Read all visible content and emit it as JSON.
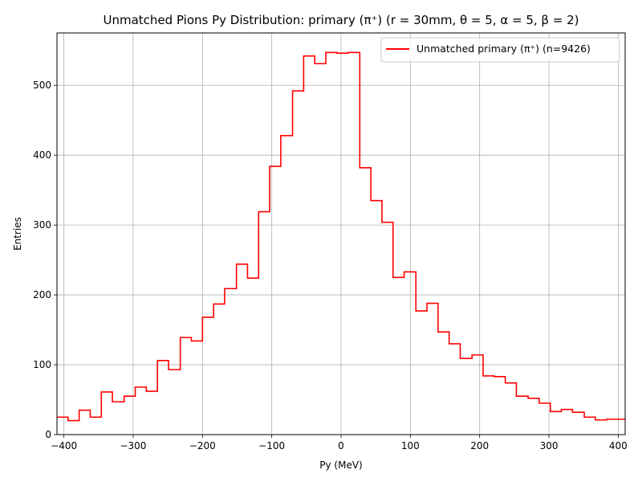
{
  "chart_data": {
    "type": "histogram-step",
    "title": "Unmatched Pions Py Distribution: primary (π⁺) (r = 30mm, θ = 5, α = 5, β = 2)",
    "xlabel": "Py (MeV)",
    "ylabel": "Entries",
    "xlim": [
      -410,
      410
    ],
    "ylim": [
      0,
      575
    ],
    "xticks": [
      -400,
      -300,
      -200,
      -100,
      0,
      100,
      200,
      300,
      400
    ],
    "xtick_labels": [
      "−400",
      "−300",
      "−200",
      "−100",
      "0",
      "100",
      "200",
      "300",
      "400"
    ],
    "yticks": [
      0,
      100,
      200,
      300,
      400,
      500
    ],
    "ytick_labels": [
      "0",
      "100",
      "200",
      "300",
      "400",
      "500"
    ],
    "grid": true,
    "legend_position": "top-right",
    "series": [
      {
        "name": "Unmatched primary (π⁺) (n=9426)",
        "color": "#ff0000",
        "bin_edges": [
          -410,
          -394,
          -378,
          -362,
          -346,
          -330,
          -313,
          -297,
          -281,
          -265,
          -249,
          -232,
          -216,
          -200,
          -184,
          -168,
          -151,
          -135,
          -119,
          -103,
          -87,
          -70,
          -54,
          -38,
          -22,
          -6,
          10,
          27,
          43,
          59,
          75,
          91,
          108,
          124,
          140,
          156,
          172,
          189,
          205,
          221,
          237,
          253,
          270,
          286,
          302,
          318,
          334,
          351,
          367,
          383,
          399,
          410
        ],
        "counts": [
          25,
          20,
          35,
          25,
          61,
          47,
          55,
          68,
          62,
          106,
          93,
          139,
          134,
          168,
          187,
          209,
          244,
          224,
          319,
          384,
          428,
          492,
          542,
          531,
          547,
          546,
          547,
          382,
          335,
          304,
          225,
          233,
          177,
          188,
          147,
          130,
          109,
          114,
          84,
          83,
          74,
          55,
          52,
          45,
          33,
          36,
          32,
          25,
          21,
          22,
          22
        ]
      }
    ]
  }
}
